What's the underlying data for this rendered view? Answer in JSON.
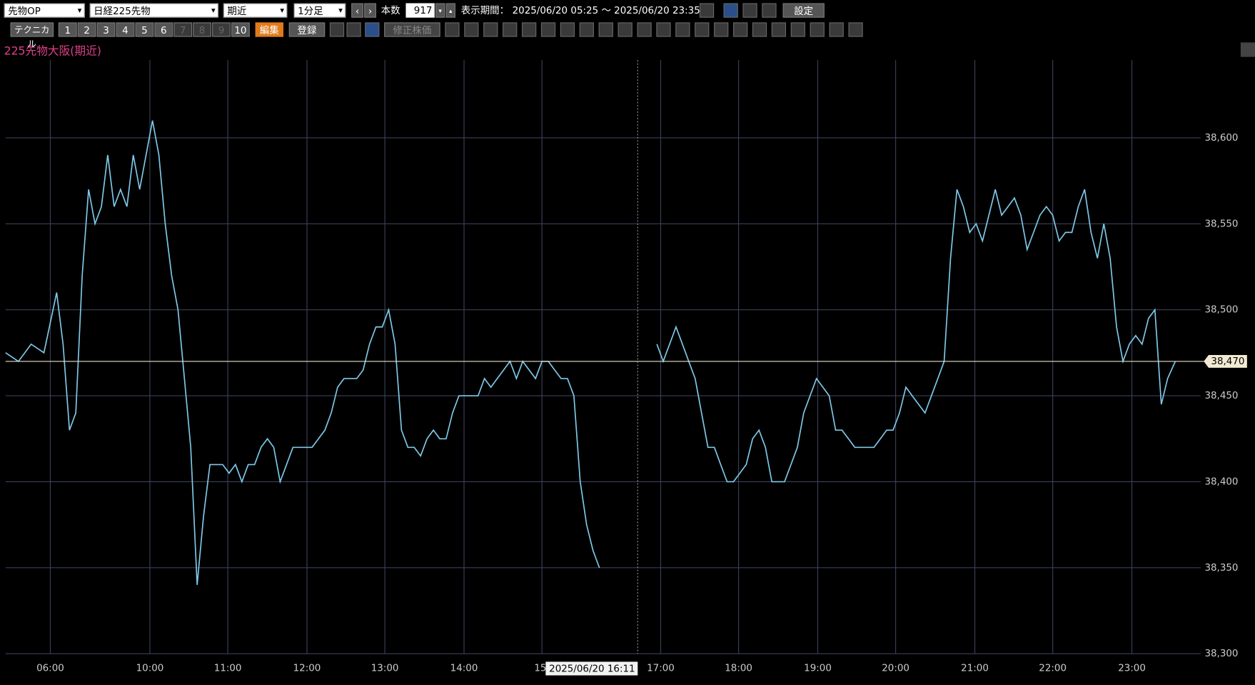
{
  "toolbar": {
    "market": "先物OP",
    "symbol": "日経225先物",
    "contract": "期近",
    "interval": "1分足",
    "bars_label": "本数",
    "bars_value": "917",
    "period_label": "表示期間：",
    "period": "2025/06/20 05:25 ～ 2025/06/20 23:35",
    "settings": "設定",
    "technical": "テクニカル",
    "layouts": [
      "1",
      "2",
      "3",
      "4",
      "5",
      "6",
      "7",
      "8",
      "9",
      "10"
    ],
    "edit": "編集",
    "register": "登録",
    "adjusted": "修正株価"
  },
  "chart_data": {
    "type": "line",
    "title": "225先物大阪(期近)",
    "x": [
      0,
      10,
      20,
      30,
      40,
      45,
      50,
      55,
      60,
      65,
      70,
      75,
      80,
      85,
      90,
      95,
      100,
      105,
      110,
      115,
      120,
      125,
      130,
      135,
      140,
      145,
      150,
      155,
      160,
      165,
      170,
      175,
      180,
      185,
      190,
      195,
      200,
      205,
      210,
      215,
      220,
      225,
      230,
      235,
      240,
      245,
      250,
      255,
      260,
      265,
      270,
      275,
      280,
      285,
      290,
      295,
      300,
      305,
      310,
      315,
      320,
      325,
      330,
      335,
      340,
      345,
      350,
      355,
      360,
      365,
      370,
      375,
      380,
      385,
      390,
      395,
      400,
      405,
      410,
      415,
      420,
      425,
      430,
      435,
      440,
      445,
      450,
      455,
      460,
      465,
      490,
      510,
      515,
      520,
      525,
      530,
      535,
      540,
      545,
      550,
      555,
      560,
      565,
      570,
      575,
      580,
      585,
      590,
      595,
      600,
      605,
      610,
      615,
      620,
      625,
      630,
      635,
      640,
      645,
      650,
      655,
      660,
      665,
      670,
      675,
      680,
      685,
      690,
      695,
      700,
      705,
      710,
      715,
      720,
      725,
      730,
      735,
      740,
      745,
      750,
      755,
      760,
      765,
      770,
      775,
      780,
      785,
      790,
      795,
      800,
      805,
      810,
      815,
      820,
      825,
      830,
      835,
      840,
      845,
      850,
      855,
      860,
      865,
      870,
      875,
      880,
      885,
      890,
      895,
      900,
      905,
      910,
      916
    ],
    "series": [
      {
        "name": "日経225先物",
        "color": "#7ec8e8",
        "values": [
          38475,
          38470,
          38480,
          38475,
          38510,
          38480,
          38430,
          38440,
          38520,
          38570,
          38550,
          38560,
          38590,
          38560,
          38570,
          38560,
          38590,
          38570,
          38590,
          38610,
          38590,
          38550,
          38520,
          38500,
          38460,
          38420,
          38340,
          38380,
          38410,
          38410,
          38410,
          38405,
          38410,
          38400,
          38410,
          38410,
          38420,
          38425,
          38420,
          38400,
          38410,
          38420,
          38420,
          38420,
          38420,
          38425,
          38430,
          38440,
          38455,
          38460,
          38460,
          38460,
          38465,
          38480,
          38490,
          38490,
          38500,
          38480,
          38430,
          38420,
          38420,
          38415,
          38425,
          38430,
          38425,
          38425,
          38440,
          38450,
          38450,
          38450,
          38450,
          38460,
          38455,
          38460,
          38465,
          38470,
          38460,
          38470,
          38465,
          38460,
          38470,
          38470,
          38465,
          38460,
          38460,
          38450,
          38400,
          38375,
          38360,
          38350,
          null,
          38480,
          38470,
          38480,
          38490,
          38480,
          38470,
          38460,
          38440,
          38420,
          38420,
          38410,
          38400,
          38400,
          38405,
          38410,
          38425,
          38430,
          38420,
          38400,
          38400,
          38400,
          38410,
          38420,
          38440,
          38450,
          38460,
          38455,
          38450,
          38430,
          38430,
          38425,
          38420,
          38420,
          38420,
          38420,
          38425,
          38430,
          38430,
          38440,
          38455,
          38450,
          38445,
          38440,
          38450,
          38460,
          38470,
          38530,
          38570,
          38560,
          38545,
          38550,
          38540,
          38555,
          38570,
          38555,
          38560,
          38565,
          38555,
          38535,
          38545,
          38555,
          38560,
          38555,
          38540,
          38545,
          38545,
          38560,
          38570,
          38545,
          38530,
          38550,
          38530,
          38490,
          38470,
          38480,
          38485,
          38480,
          38495,
          38500,
          38445,
          38460,
          38470
        ]
      }
    ],
    "xlim": [
      0,
      917
    ],
    "xticks": [
      {
        "value": 35,
        "label": "06:00"
      },
      {
        "value": 113,
        "label": "10:00"
      },
      {
        "value": 174,
        "label": "11:00"
      },
      {
        "value": 236,
        "label": "12:00"
      },
      {
        "value": 297,
        "label": "13:00"
      },
      {
        "value": 359,
        "label": "14:00"
      },
      {
        "value": 420,
        "label": "15:"
      },
      {
        "value": 513,
        "label": "17:00"
      },
      {
        "value": 574,
        "label": "18:00"
      },
      {
        "value": 636,
        "label": "19:00"
      },
      {
        "value": 697,
        "label": "20:00"
      },
      {
        "value": 759,
        "label": "21:00"
      },
      {
        "value": 820,
        "label": "22:00"
      },
      {
        "value": 882,
        "label": "23:00"
      }
    ],
    "ylim": [
      38300,
      38650
    ],
    "yticks": [
      {
        "value": 38300,
        "label": "38,300"
      },
      {
        "value": 38350,
        "label": "38,350"
      },
      {
        "value": 38400,
        "label": "38,400"
      },
      {
        "value": 38450,
        "label": "38,450"
      },
      {
        "value": 38500,
        "label": "38,500"
      },
      {
        "value": 38550,
        "label": "38,550"
      },
      {
        "value": 38600,
        "label": "38,600"
      }
    ],
    "last_price": {
      "value": 38470,
      "label": "38,470"
    },
    "crosshair": {
      "value": 495,
      "label": "2025/06/20 16:11"
    },
    "grid": true
  }
}
